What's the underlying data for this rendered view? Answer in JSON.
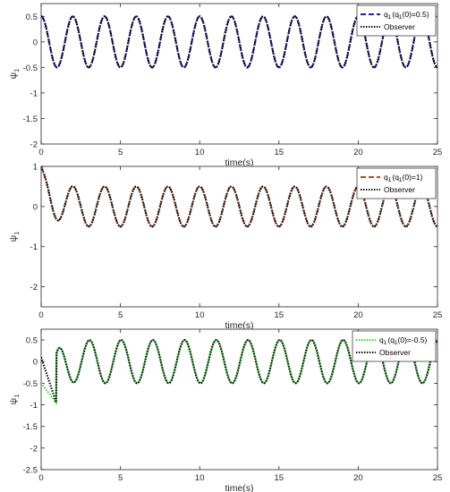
{
  "chart_data": [
    {
      "type": "line",
      "xlabel": "time(s)",
      "ylabel": "ψ",
      "ylabel_sub": "1",
      "xlim": [
        0,
        25
      ],
      "ylim": [
        -2,
        0.75
      ],
      "xticks": [
        0,
        5,
        10,
        15,
        20,
        25
      ],
      "yticks": [
        -2,
        -1.5,
        -1,
        -0.5,
        0,
        0.5
      ],
      "ytick_labels": [
        "-2",
        "-1.5",
        "-1",
        "-0.5",
        "0",
        "0.5"
      ],
      "legend_position": "top-right",
      "signal": {
        "amplitude": 0.5,
        "period": 2.0,
        "initial": 0.5,
        "observer_initial": 0.5
      },
      "series": [
        {
          "name": "q",
          "name_sub": "1",
          "name_mid": "(q",
          "name_mid_sub": "1",
          "name_tail": "(0)=0.5)",
          "color": "#1f1fa8",
          "style": "dashed"
        },
        {
          "name": "Observer",
          "color": "#000000",
          "style": "dotted"
        }
      ]
    },
    {
      "type": "line",
      "xlabel": "time(s)",
      "ylabel": "ψ",
      "ylabel_sub": "1",
      "xlim": [
        0,
        25
      ],
      "ylim": [
        -2.5,
        1
      ],
      "xticks": [
        0,
        5,
        10,
        15,
        20,
        25
      ],
      "yticks": [
        -2,
        -1,
        0,
        1
      ],
      "ytick_labels": [
        "-2",
        "-1",
        "0",
        "1"
      ],
      "legend_position": "top-right",
      "signal": {
        "amplitude": 0.5,
        "period": 2.0,
        "initial": 1.0,
        "observer_initial": 1.0
      },
      "series": [
        {
          "name": "q",
          "name_sub": "1",
          "name_mid": "(q",
          "name_mid_sub": "1",
          "name_tail": "(0)=1)",
          "color": "#a0522d",
          "style": "dashed"
        },
        {
          "name": "Observer",
          "color": "#000000",
          "style": "dotted"
        }
      ]
    },
    {
      "type": "line",
      "xlabel": "time(s)",
      "ylabel": "ψ",
      "ylabel_sub": "1",
      "xlim": [
        0,
        25
      ],
      "ylim": [
        -2.5,
        0.75
      ],
      "xticks": [
        0,
        5,
        10,
        15,
        20,
        25
      ],
      "yticks": [
        -2.5,
        -2,
        -1.5,
        -1,
        -0.5,
        0,
        0.5
      ],
      "ytick_labels": [
        "-2.5",
        "-2",
        "-1.5",
        "-1",
        "-0.5",
        "0",
        "0.5"
      ],
      "legend_position": "top-right",
      "signal": {
        "amplitude": 0.5,
        "period": 2.0,
        "initial": -0.5,
        "observer_initial": 0.1
      },
      "series": [
        {
          "name": "q",
          "name_sub": "1",
          "name_mid": "(q",
          "name_mid_sub": "1",
          "name_tail": "(0)=-0.5)",
          "color": "#33cc33",
          "style": "dotted"
        },
        {
          "name": "Observer",
          "color": "#000000",
          "style": "dotted"
        }
      ]
    }
  ]
}
